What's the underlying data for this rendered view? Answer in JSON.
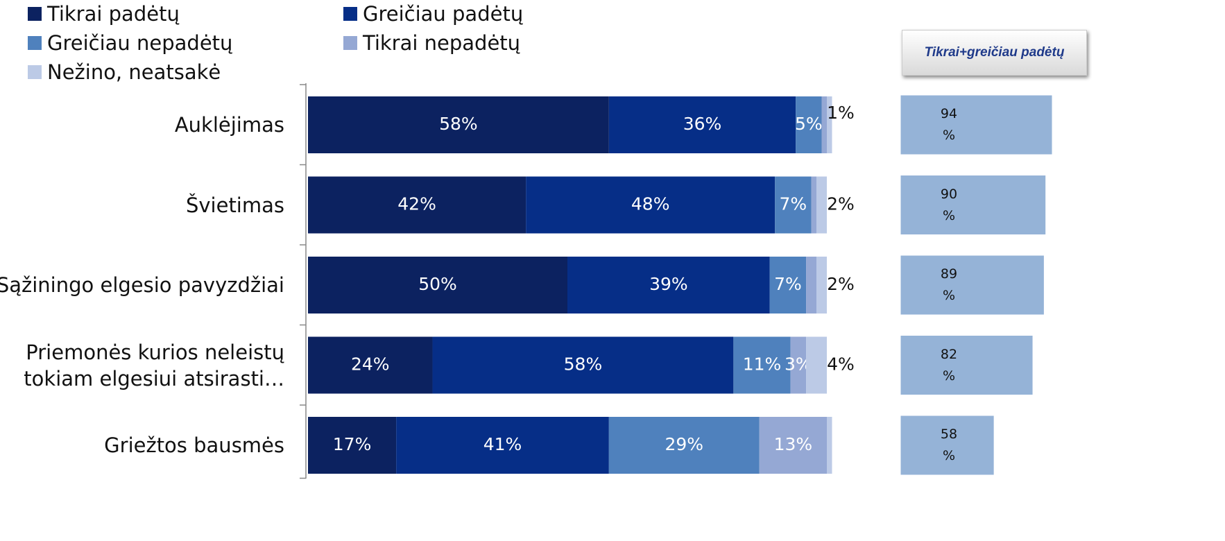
{
  "chart_data": {
    "type": "bar",
    "orientation": "horizontal",
    "stacked": true,
    "categories": [
      "Auklėjimas",
      "Švietimas",
      "Sąžiningo elgesio pavyzdžiai",
      "Priemonės kurios neleistų tokiam elgesiui atsirasti…",
      "Griežtos bausmės"
    ],
    "xlim": [
      0,
      100
    ],
    "legend": "top",
    "series": [
      {
        "name": "Tikrai padėtų",
        "color": "#0c2260",
        "values": [
          58,
          42,
          50,
          24,
          17
        ],
        "value_labels": [
          "58%",
          "42%",
          "50%",
          "24%",
          "17%"
        ]
      },
      {
        "name": "Greičiau padėtų",
        "color": "#062e87",
        "values": [
          36,
          48,
          39,
          58,
          41
        ],
        "value_labels": [
          "36%",
          "48%",
          "39%",
          "58%",
          "41%"
        ]
      },
      {
        "name": "Greičiau nepadėtų",
        "color": "#4f81bd",
        "values": [
          5,
          7,
          7,
          11,
          29
        ],
        "value_labels": [
          "5%",
          "7%",
          "7%",
          "11%",
          "29%"
        ]
      },
      {
        "name": "Tikrai nepadėtų",
        "color": "#95a8d4",
        "values": [
          1,
          1,
          2,
          3,
          13
        ],
        "value_labels": [
          null,
          null,
          null,
          "3%",
          "13%"
        ]
      },
      {
        "name": "Nežino, neatsakė",
        "color": "#bccae6",
        "values": [
          1,
          2,
          2,
          4,
          1
        ],
        "value_labels": [
          "1%",
          "2%",
          "2%",
          "4%",
          null
        ]
      }
    ],
    "totals": {
      "title": "Tikrai+greičiau padėtų",
      "color": "#95b3d7",
      "xlim": [
        0,
        100
      ],
      "values": [
        94,
        90,
        89,
        82,
        58
      ],
      "value_labels": [
        "94 %",
        "90 %",
        "89 %",
        "82 %",
        "58 %"
      ]
    }
  }
}
